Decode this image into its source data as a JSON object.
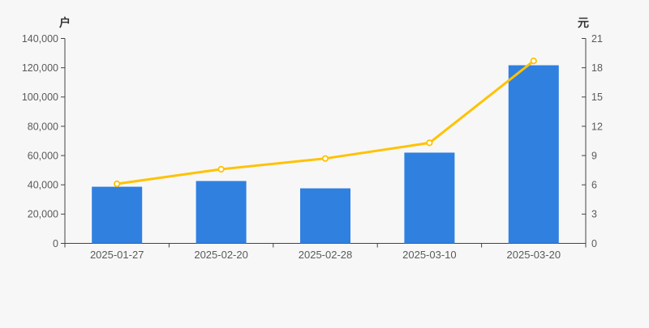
{
  "chart_data": {
    "type": "combo",
    "categories": [
      "2025-01-27",
      "2025-02-20",
      "2025-02-28",
      "2025-03-10",
      "2025-03-20"
    ],
    "series": [
      {
        "kind": "bar",
        "axis": "left",
        "values": [
          38700,
          42600,
          37600,
          62000,
          121700
        ]
      },
      {
        "kind": "line",
        "axis": "right",
        "values": [
          6.1,
          7.6,
          8.7,
          10.3,
          18.7
        ],
        "marker": "hollow-circle"
      }
    ],
    "left_axis": {
      "name": "户",
      "min": 0,
      "max": 140000,
      "step": 20000,
      "tick_labels": [
        "0",
        "20,000",
        "40,000",
        "60,000",
        "80,000",
        "100,000",
        "120,000",
        "140,000"
      ]
    },
    "right_axis": {
      "name": "元",
      "min": 0,
      "max": 21,
      "step": 3,
      "tick_labels": [
        "0",
        "3",
        "6",
        "9",
        "12",
        "15",
        "18",
        "21"
      ]
    },
    "grid": false,
    "legend": false,
    "colors": {
      "background": "#f7f7f7",
      "bar": "#3080e0",
      "line": "#ffc200",
      "marker_fill": "#ffffff",
      "axis": "#444444",
      "tick_text": "#5a5a5a",
      "axis_name_text": "#333333"
    }
  }
}
